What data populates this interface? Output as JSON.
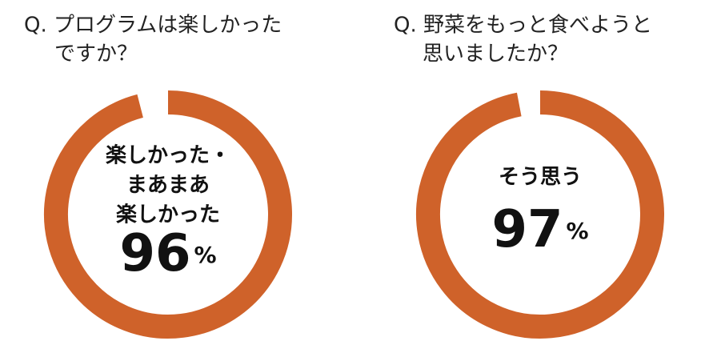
{
  "chart_data": [
    {
      "type": "donut",
      "title": [
        "Q. プログラムは楽しかった",
        "ですか？"
      ],
      "categories": [
        "楽しかった・まあまあ楽しかった"
      ],
      "center_label": [
        "楽しかった・",
        "まあまあ",
        "楽しかった"
      ],
      "values": [
        96
      ],
      "unit": "%",
      "color": "#cf622a",
      "ylim": [
        0,
        100
      ]
    },
    {
      "type": "donut",
      "title": [
        "Q. 野菜をもっと食べようと",
        "思いましたか？"
      ],
      "categories": [
        "そう思う"
      ],
      "center_label": [
        "そう思う"
      ],
      "values": [
        97
      ],
      "unit": "%",
      "color": "#cf622a",
      "ylim": [
        0,
        100
      ]
    }
  ]
}
